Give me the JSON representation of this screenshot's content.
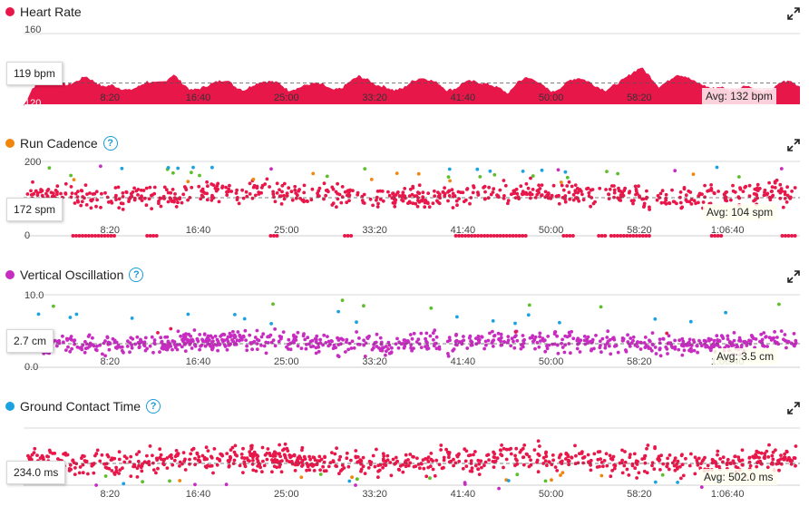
{
  "colors": {
    "heart_rate": "#e8174a",
    "cadence_dot": "#f0860c",
    "vo_dot": "#c72cc0",
    "gct_dot": "#1aa3e0",
    "series_red": "#e8174a",
    "series_orange": "#f0860c",
    "series_green": "#5cbf2a",
    "series_blue": "#1aa3e0",
    "series_purple": "#c72cc0",
    "help": "#1a9bd7"
  },
  "panels": {
    "heart_rate": {
      "title": "Heart Rate",
      "current": "119 bpm",
      "avg": "Avg: 132 bpm",
      "icon": "red-dot-icon"
    },
    "cadence": {
      "title": "Run Cadence",
      "current": "172 spm",
      "avg": "Avg: 104 spm",
      "icon": "orange-dot-icon"
    },
    "vertical_oscillation": {
      "title": "Vertical Oscillation",
      "current": "2.7 cm",
      "avg": "Avg: 3.5 cm",
      "icon": "purple-dot-icon"
    },
    "ground_contact": {
      "title": "Ground Contact Time",
      "current": "234.0 ms",
      "avg": "Avg: 502.0 ms",
      "icon": "blue-dot-icon"
    }
  },
  "chart_data": [
    {
      "type": "area",
      "title": "Heart Rate",
      "y_ticks": [
        "160",
        "120"
      ],
      "ylim": [
        120,
        160
      ],
      "x_ticks": [
        "8:20",
        "16:40",
        "25:00",
        "33:20",
        "41:40",
        "50:00",
        "58:20",
        "1:06:40"
      ],
      "x_tick_seconds": [
        500,
        1000,
        1500,
        2000,
        2500,
        3000,
        3500,
        4000
      ],
      "xlim_seconds": [
        0,
        4400
      ],
      "avg": 132,
      "x_seconds": [
        0,
        50,
        100,
        150,
        200,
        250,
        300,
        350,
        400,
        450,
        500,
        550,
        600,
        650,
        700,
        750,
        800,
        850,
        900,
        950,
        1000,
        1050,
        1100,
        1150,
        1200,
        1250,
        1300,
        1350,
        1400,
        1450,
        1500,
        1550,
        1600,
        1650,
        1700,
        1750,
        1800,
        1850,
        1900,
        1950,
        2000,
        2050,
        2100,
        2150,
        2200,
        2250,
        2300,
        2350,
        2400,
        2450,
        2500,
        2550,
        2600,
        2650,
        2700,
        2750,
        2800,
        2850,
        2900,
        2950,
        3000,
        3050,
        3100,
        3150,
        3200,
        3250,
        3300,
        3350,
        3400,
        3450,
        3500,
        3550,
        3600,
        3650,
        3700,
        3750,
        3800,
        3850,
        3900,
        3950,
        4000,
        4050,
        4100,
        4150,
        4200,
        4250,
        4300,
        4350,
        4400
      ],
      "values": [
        119,
        129,
        134,
        135,
        132,
        131,
        133,
        136,
        133,
        130,
        131,
        129,
        128,
        130,
        133,
        132,
        133,
        137,
        132,
        128,
        129,
        131,
        133,
        134,
        130,
        128,
        131,
        133,
        133,
        132,
        128,
        129,
        131,
        132,
        131,
        128,
        129,
        133,
        136,
        134,
        131,
        130,
        128,
        129,
        133,
        135,
        134,
        132,
        128,
        129,
        133,
        133,
        132,
        131,
        129,
        126,
        133,
        135,
        134,
        130,
        127,
        130,
        134,
        135,
        133,
        130,
        128,
        131,
        134,
        138,
        141,
        136,
        130,
        133,
        137,
        136,
        133,
        131,
        129,
        130,
        128,
        129,
        131,
        128,
        127,
        129,
        133,
        133,
        130
      ]
    },
    {
      "type": "scatter",
      "title": "Run Cadence",
      "y_ticks": [
        "200",
        "0"
      ],
      "ylim": [
        0,
        200
      ],
      "x_ticks": [
        "8:20",
        "16:40",
        "25:00",
        "33:20",
        "41:40",
        "50:00",
        "58:20",
        "1:06:40"
      ],
      "avg": 104,
      "typical_range": [
        150,
        180
      ],
      "outlier_colors": [
        "green",
        "blue",
        "orange",
        "purple"
      ]
    },
    {
      "type": "scatter",
      "title": "Vertical Oscillation",
      "y_ticks": [
        "10.0",
        "0.0"
      ],
      "ylim": [
        0,
        10
      ],
      "x_ticks": [
        "8:20",
        "16:40",
        "25:00",
        "33:20",
        "41:40",
        "50:00",
        "58:20",
        "1:06:40"
      ],
      "avg": 3.5,
      "typical_range": [
        1.5,
        4.5
      ],
      "outlier_colors": [
        "blue",
        "green",
        "red"
      ]
    },
    {
      "type": "scatter",
      "title": "Ground Contact Time",
      "y_ticks": [],
      "x_ticks": [
        "8:20",
        "16:40",
        "25:00",
        "33:20",
        "41:40",
        "50:00",
        "58:20",
        "1:06:40"
      ],
      "avg": 502.0,
      "outlier_colors": [
        "orange",
        "green",
        "purple",
        "blue"
      ]
    }
  ]
}
